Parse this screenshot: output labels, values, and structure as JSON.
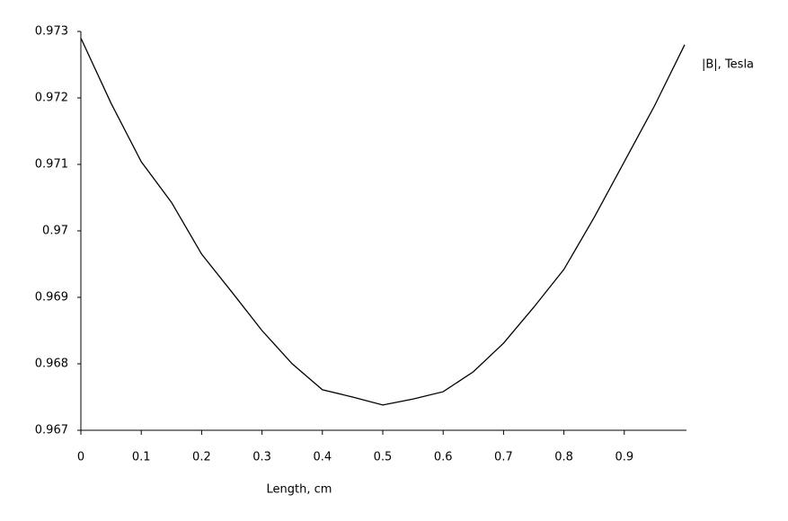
{
  "chart_data": {
    "type": "line",
    "x_label": "Length, cm",
    "x": [
      0,
      0.05,
      0.1,
      0.15,
      0.2,
      0.25,
      0.3,
      0.35,
      0.4,
      0.45,
      0.5,
      0.55,
      0.6,
      0.65,
      0.7,
      0.75,
      0.8,
      0.85,
      0.9,
      0.95,
      1.0
    ],
    "series": [
      {
        "name": "|B|, Tesla",
        "color": "#000000",
        "values": [
          0.9729,
          0.97192,
          0.97104,
          0.97043,
          0.96965,
          0.96908,
          0.9685,
          0.968,
          0.96761,
          0.9675,
          0.96738,
          0.96747,
          0.96758,
          0.96788,
          0.96831,
          0.96885,
          0.96942,
          0.9702,
          0.97104,
          0.97188,
          0.9728
        ]
      }
    ],
    "xlim": [
      0,
      1
    ],
    "xticks": [
      0,
      0.1,
      0.2,
      0.3,
      0.4,
      0.5,
      0.6,
      0.7,
      0.8,
      0.9
    ],
    "ylim": [
      0.967,
      0.973
    ],
    "yticks": [
      0.967,
      0.968,
      0.969,
      0.97,
      0.971,
      0.972,
      0.973
    ],
    "legend": "top-right"
  }
}
